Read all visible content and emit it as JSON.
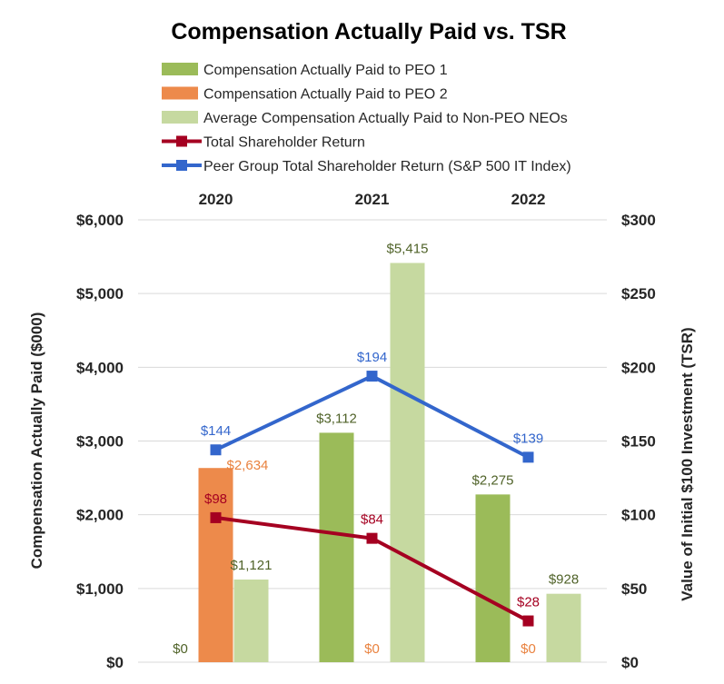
{
  "chart_data": {
    "type": "bar",
    "title": "Compensation Actually Paid vs. TSR",
    "categories": [
      "2020",
      "2021",
      "2022"
    ],
    "ylabel": "Compensation Actually Paid ($000)",
    "ylabel_right": "Value of Initial $100 Investment (TSR)",
    "ylim": [
      0,
      6000
    ],
    "ylim_right": [
      0,
      300
    ],
    "yticks": [
      "$0",
      "$1,000",
      "$2,000",
      "$3,000",
      "$4,000",
      "$5,000",
      "$6,000"
    ],
    "yticks_right": [
      "$0",
      "$50",
      "$100",
      "$150",
      "$200",
      "$250",
      "$300"
    ],
    "grid": true,
    "legend_position": "top",
    "series": [
      {
        "name": "Compensation Actually Paid to PEO 1",
        "kind": "bar",
        "axis": "left",
        "color": "#9BBB59",
        "values": [
          0,
          3112,
          2275
        ],
        "labels": [
          "$0",
          "$3,112",
          "$2,275"
        ],
        "label_color": "#4F6228"
      },
      {
        "name": "Compensation Actually Paid to PEO 2",
        "kind": "bar",
        "axis": "left",
        "color": "#ED8A4B",
        "values": [
          2634,
          0,
          0
        ],
        "labels": [
          "$2,634",
          "$0",
          "$0"
        ],
        "label_color": "#E9823F"
      },
      {
        "name": "Average Compensation Actually Paid to Non-PEO NEOs",
        "kind": "bar",
        "axis": "left",
        "color": "#C6D9A0",
        "values": [
          1121,
          5415,
          928
        ],
        "labels": [
          "$1,121",
          "$5,415",
          "$928"
        ],
        "label_color": "#4F6228"
      },
      {
        "name": "Total Shareholder Return",
        "kind": "line",
        "axis": "right",
        "color": "#A50021",
        "values": [
          98,
          84,
          28
        ],
        "labels": [
          "$98",
          "$84",
          "$28"
        ],
        "label_color": "#A50021"
      },
      {
        "name": "Peer Group Total Shareholder Return (S&P 500 IT Index)",
        "kind": "line",
        "axis": "right",
        "color": "#3366CC",
        "values": [
          144,
          194,
          139
        ],
        "labels": [
          "$144",
          "$194",
          "$139"
        ],
        "label_color": "#3366CC"
      }
    ]
  }
}
